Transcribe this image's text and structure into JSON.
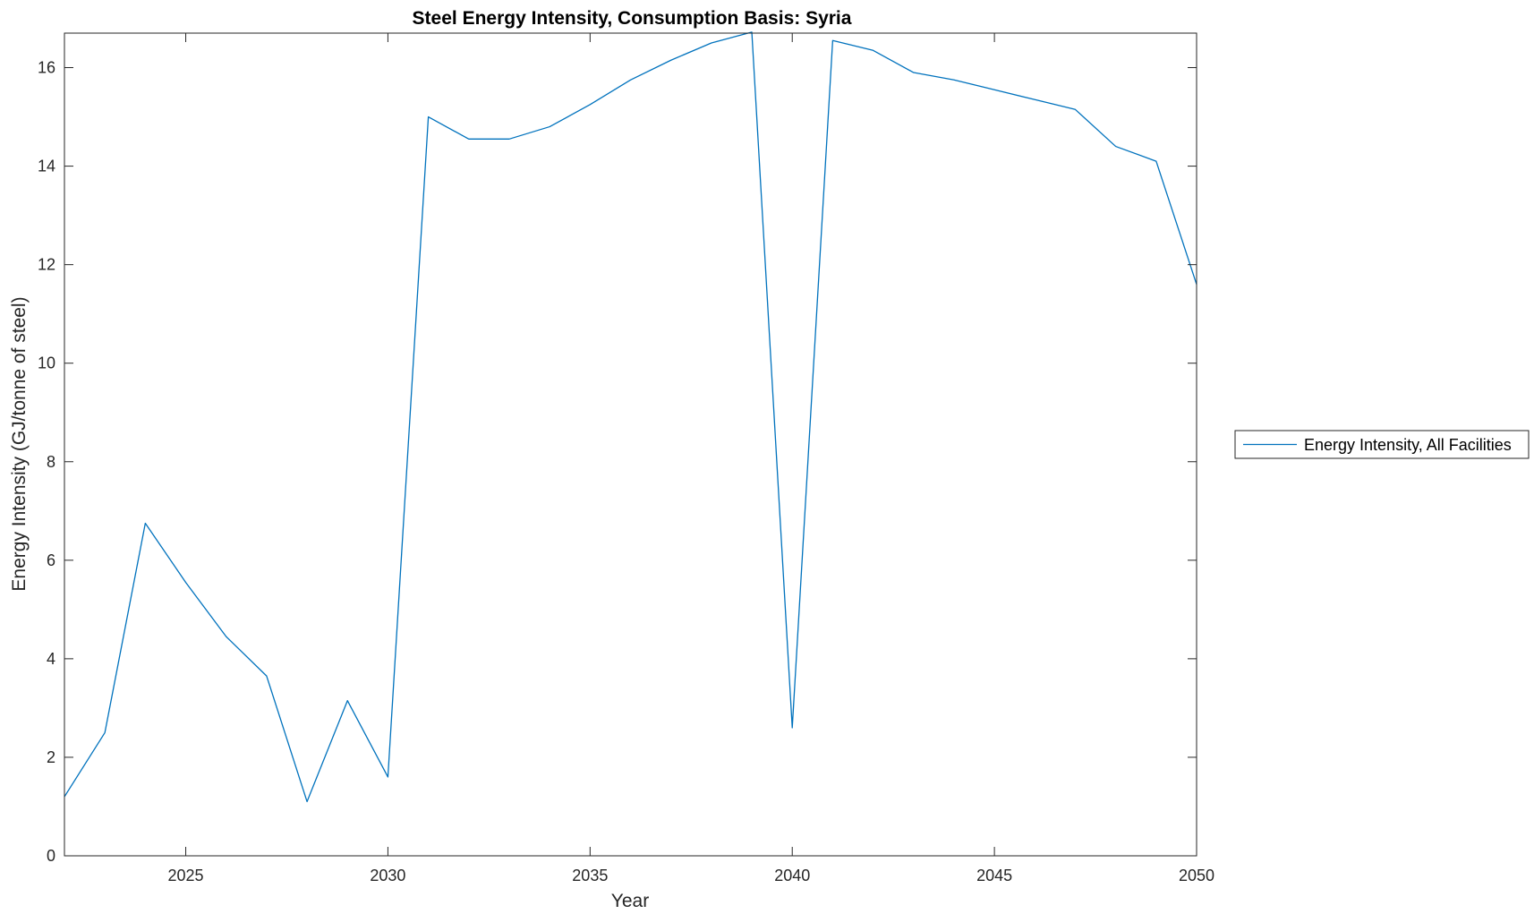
{
  "chart_data": {
    "type": "line",
    "title": "Steel Energy Intensity, Consumption Basis: Syria",
    "xlabel": "Year",
    "ylabel": "Energy Intensity (GJ/tonne of steel)",
    "xlim": [
      2022,
      2050
    ],
    "ylim": [
      0,
      16.7
    ],
    "xticks": [
      2025,
      2030,
      2035,
      2040,
      2045,
      2050
    ],
    "yticks": [
      0,
      2,
      4,
      6,
      8,
      10,
      12,
      14,
      16
    ],
    "grid": false,
    "legend_position": "outside-right",
    "series": [
      {
        "name": "Energy Intensity, All Facilities",
        "color": "#0072BD",
        "x": [
          2022,
          2023,
          2024,
          2025,
          2026,
          2027,
          2028,
          2029,
          2030,
          2031,
          2032,
          2033,
          2034,
          2035,
          2036,
          2037,
          2038,
          2039,
          2040,
          2041,
          2042,
          2043,
          2044,
          2045,
          2046,
          2047,
          2048,
          2049,
          2050
        ],
        "values": [
          1.2,
          2.5,
          6.75,
          5.55,
          4.45,
          3.65,
          1.1,
          3.15,
          1.6,
          15.0,
          14.55,
          14.55,
          14.8,
          15.25,
          15.75,
          16.15,
          16.5,
          16.72,
          2.6,
          16.55,
          16.35,
          15.9,
          15.75,
          15.55,
          15.35,
          15.15,
          14.4,
          14.1,
          11.6
        ]
      }
    ]
  }
}
